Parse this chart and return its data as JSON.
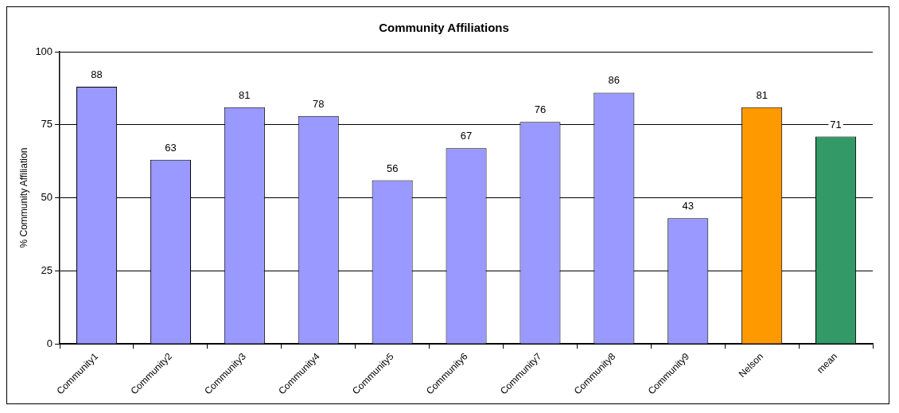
{
  "chart_data": {
    "type": "bar",
    "title": "Community Affiliations",
    "ylabel": "% Community Affiliation",
    "categories": [
      "Community1",
      "Community2",
      "Community3",
      "Community4",
      "Community5",
      "Community6",
      "Community7",
      "Community8",
      "Community9",
      "Nelson",
      "mean"
    ],
    "values": [
      88,
      63,
      81,
      78,
      56,
      67,
      76,
      86,
      43,
      81,
      71
    ],
    "colors": [
      "#9999ff",
      "#9999ff",
      "#9999ff",
      "#9999ff",
      "#9999ff",
      "#9999ff",
      "#9999ff",
      "#9999ff",
      "#9999ff",
      "#ff9900",
      "#339966"
    ],
    "ylim": [
      0,
      100
    ],
    "yticks": [
      0,
      25,
      50,
      75,
      100
    ],
    "grid": "y",
    "legend": false,
    "data_labels": true
  }
}
